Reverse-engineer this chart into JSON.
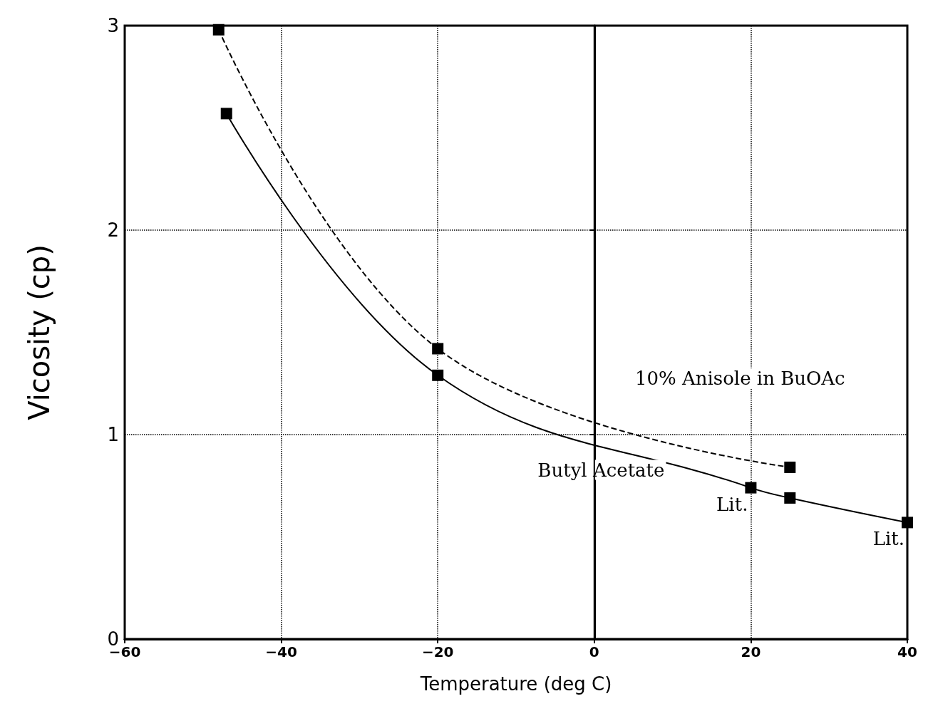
{
  "chart_data": {
    "type": "line",
    "xlabel": "Temperature (deg C)",
    "ylabel": "Vicosity (cp)",
    "xlim": [
      -60,
      40
    ],
    "xticks": [
      -60,
      -40,
      -20,
      0,
      20,
      40
    ],
    "ylim": [
      0,
      3
    ],
    "yticks": [
      0,
      1,
      2,
      3
    ],
    "grid": true,
    "series": [
      {
        "name": "10% Anisole in BuOAc",
        "x": [
          -48,
          -20,
          25
        ],
        "values": [
          2.98,
          1.42,
          0.84
        ],
        "color": "#000000",
        "line_style": "dashed",
        "marker": "square"
      },
      {
        "name": "Butyl Acetate",
        "x": [
          -47,
          -20,
          20,
          25,
          40
        ],
        "values": [
          2.57,
          1.29,
          0.74,
          0.69,
          0.57
        ],
        "color": "#000000",
        "line_style": "solid",
        "marker": "square"
      }
    ],
    "ref_lines": [
      {
        "axis": "x",
        "value": 0,
        "line_style": "solid",
        "color": "#000000"
      }
    ],
    "annotations": [
      {
        "text": "Lit.",
        "x": 20,
        "y": 0.74
      },
      {
        "text": "Lit.",
        "x": 40,
        "y": 0.57
      }
    ]
  }
}
